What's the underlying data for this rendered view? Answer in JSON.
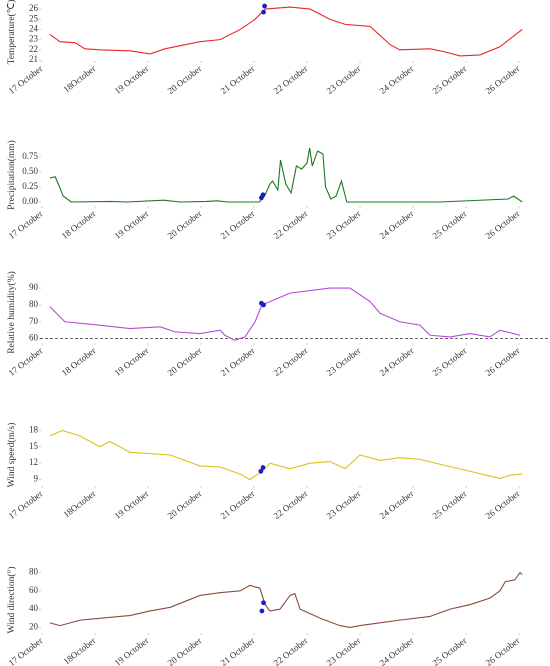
{
  "chart_data": [
    {
      "type": "line",
      "ylabel": "Temperature(℃)",
      "xlim": [
        17,
        26.2
      ],
      "ylim": [
        21,
        26.5
      ],
      "yticks": [
        21,
        22,
        23,
        24,
        25,
        26
      ],
      "xticks": [
        {
          "value": 17,
          "label": "17 October"
        },
        {
          "value": 18,
          "label": "18October"
        },
        {
          "value": 19,
          "label": "19 October"
        },
        {
          "value": 20,
          "label": "20 October"
        },
        {
          "value": 21,
          "label": "21 October"
        },
        {
          "value": 22,
          "label": "22 October"
        },
        {
          "value": 23,
          "label": "23 October"
        },
        {
          "value": 24,
          "label": "24 October"
        },
        {
          "value": 25,
          "label": "25 October"
        },
        {
          "value": 26,
          "label": "26 October"
        }
      ],
      "series": [
        {
          "color": "#e8262a",
          "x": [
            17.15,
            17.34,
            17.62,
            17.81,
            18.09,
            18.66,
            19.04,
            19.32,
            19.98,
            20.36,
            20.74,
            21.02,
            21.21,
            21.68,
            22.06,
            22.43,
            22.72,
            23.19,
            23.57,
            23.75,
            24.32,
            24.6,
            24.89,
            25.26,
            25.64,
            26.06
          ],
          "values": [
            23.5,
            22.8,
            22.7,
            22.1,
            22.0,
            21.9,
            21.6,
            22.1,
            22.8,
            23.0,
            24.0,
            25.0,
            26.0,
            26.2,
            26.0,
            25.0,
            24.5,
            24.3,
            22.5,
            22.0,
            22.1,
            21.8,
            21.4,
            21.5,
            22.3,
            24.0
          ]
        },
        {
          "color": "#1c1cc8",
          "marker": true,
          "x": [
            21.18,
            21.2
          ],
          "values": [
            25.7,
            26.3
          ]
        }
      ]
    },
    {
      "type": "line",
      "ylabel": "Precipitation(mm)",
      "xlim": [
        17,
        26.2
      ],
      "ylim": [
        -0.05,
        0.95
      ],
      "yticks": [
        {
          "value": 0,
          "label": "0.00"
        },
        {
          "value": 0.25,
          "label": "0.25"
        },
        {
          "value": 0.5,
          "label": "0.50"
        },
        {
          "value": 0.75,
          "label": "0.75"
        }
      ],
      "xticks": [
        {
          "value": 17,
          "label": "17 October"
        },
        {
          "value": 18,
          "label": "18 October"
        },
        {
          "value": 19,
          "label": "19 October"
        },
        {
          "value": 20,
          "label": "20 October"
        },
        {
          "value": 21,
          "label": "21 October"
        },
        {
          "value": 22,
          "label": "22 October"
        },
        {
          "value": 23,
          "label": "23 October"
        },
        {
          "value": 24,
          "label": "24 October"
        },
        {
          "value": 25,
          "label": "25 October"
        },
        {
          "value": 26,
          "label": "26 October"
        }
      ],
      "series": [
        {
          "color": "#1a7a1a",
          "x": [
            17.15,
            17.25,
            17.4,
            17.55,
            18.3,
            18.6,
            19.3,
            19.6,
            20.1,
            20.3,
            20.5,
            21.1,
            21.2,
            21.3,
            21.35,
            21.45,
            21.5,
            21.6,
            21.7,
            21.8,
            21.9,
            22.0,
            22.05,
            22.1,
            22.2,
            22.3,
            22.35,
            22.45,
            22.55,
            22.65,
            22.75,
            23.5,
            24.5,
            25.8,
            25.9,
            26.06
          ],
          "values": [
            0.4,
            0.42,
            0.1,
            0,
            0.01,
            0,
            0.03,
            0,
            0.01,
            0.02,
            0,
            0,
            0.1,
            0.3,
            0.35,
            0.2,
            0.7,
            0.3,
            0.15,
            0.6,
            0.55,
            0.65,
            0.9,
            0.6,
            0.85,
            0.8,
            0.25,
            0.05,
            0.1,
            0.35,
            0,
            0,
            0,
            0.05,
            0.1,
            0
          ]
        },
        {
          "color": "#1c1cc8",
          "marker": true,
          "x": [
            21.14,
            21.17
          ],
          "values": [
            0.07,
            0.12
          ]
        }
      ]
    },
    {
      "type": "line",
      "ylabel": "Relative humidity(%)",
      "xlim": [
        17,
        26.2
      ],
      "ylim": [
        58,
        93
      ],
      "yticks": [
        60,
        70,
        80,
        90
      ],
      "hline": 60,
      "xticks": [
        {
          "value": 17,
          "label": "17 October"
        },
        {
          "value": 18,
          "label": "18 October"
        },
        {
          "value": 19,
          "label": "19 October"
        },
        {
          "value": 20,
          "label": "20 October"
        },
        {
          "value": 21,
          "label": "21 October"
        },
        {
          "value": 22,
          "label": "22 October"
        },
        {
          "value": 23,
          "label": "23 October"
        },
        {
          "value": 24,
          "label": "24 October"
        },
        {
          "value": 25,
          "label": "25 October"
        },
        {
          "value": 26,
          "label": "26 October"
        }
      ],
      "series": [
        {
          "color": "#b54ad6",
          "x": [
            17.15,
            17.43,
            18.09,
            18.66,
            19.23,
            19.51,
            19.98,
            20.36,
            20.45,
            20.64,
            20.83,
            21.02,
            21.15,
            21.68,
            22.43,
            22.81,
            23.19,
            23.38,
            23.75,
            24.13,
            24.32,
            24.7,
            25.08,
            25.45,
            25.64,
            26.02
          ],
          "values": [
            79,
            70,
            68,
            66,
            67,
            64,
            63,
            65,
            62,
            59,
            61,
            70,
            80,
            87,
            90,
            90,
            82,
            75,
            70,
            68,
            62,
            61,
            63,
            61,
            65,
            62
          ]
        },
        {
          "color": "#1c1cc8",
          "marker": true,
          "x": [
            21.14,
            21.18
          ],
          "values": [
            81,
            80
          ]
        }
      ]
    },
    {
      "type": "line",
      "ylabel": "Wind speed(m/s)",
      "xlim": [
        17,
        26.2
      ],
      "ylim": [
        8,
        19
      ],
      "yticks": [
        9,
        12,
        15,
        18
      ],
      "xticks": [
        {
          "value": 17,
          "label": "17 October"
        },
        {
          "value": 18,
          "label": "18October"
        },
        {
          "value": 19,
          "label": "19 October"
        },
        {
          "value": 20,
          "label": "20 October"
        },
        {
          "value": 21,
          "label": "21 October"
        },
        {
          "value": 22,
          "label": "22 October"
        },
        {
          "value": 23,
          "label": "23 October"
        },
        {
          "value": 24,
          "label": "24 October"
        },
        {
          "value": 25,
          "label": "25 October"
        },
        {
          "value": 26,
          "label": "26 October"
        }
      ],
      "series": [
        {
          "color": "#d9c21a",
          "x": [
            17.15,
            17.38,
            17.72,
            18.09,
            18.28,
            18.66,
            19.42,
            19.98,
            20.36,
            20.74,
            20.92,
            21.15,
            21.3,
            21.68,
            22.06,
            22.43,
            22.72,
            23.0,
            23.38,
            23.75,
            24.13,
            24.51,
            25.08,
            25.64,
            25.83,
            26.06
          ],
          "values": [
            17,
            18,
            17,
            15,
            16,
            14,
            13.5,
            11.5,
            11.3,
            10,
            9,
            10.5,
            12,
            11,
            12,
            12.3,
            11,
            13.5,
            12.5,
            13,
            12.7,
            11.8,
            10.5,
            9.2,
            9.8,
            10
          ]
        },
        {
          "color": "#1c1cc8",
          "marker": true,
          "x": [
            21.13,
            21.17
          ],
          "values": [
            10.5,
            11.2
          ]
        }
      ]
    },
    {
      "type": "line",
      "ylabel": "Wind direction(°)",
      "xlim": [
        17,
        26.2
      ],
      "ylim": [
        15,
        85
      ],
      "yticks": [
        20,
        40,
        60,
        80
      ],
      "xticks": [
        {
          "value": 17,
          "label": "17 October"
        },
        {
          "value": 18,
          "label": "18October"
        },
        {
          "value": 19,
          "label": "19 October"
        },
        {
          "value": 20,
          "label": "20 October"
        },
        {
          "value": 21,
          "label": "21 October"
        },
        {
          "value": 22,
          "label": "22 October"
        },
        {
          "value": 23,
          "label": "23 October"
        },
        {
          "value": 24,
          "label": "24 October"
        },
        {
          "value": 25,
          "label": "25 October"
        },
        {
          "value": 26,
          "label": "26 October"
        }
      ],
      "series": [
        {
          "color": "#8b4a3a",
          "x": [
            17.15,
            17.34,
            17.72,
            18.09,
            18.66,
            19.04,
            19.42,
            19.98,
            20.36,
            20.74,
            20.92,
            21.11,
            21.21,
            21.3,
            21.49,
            21.68,
            21.77,
            21.87,
            22.25,
            22.62,
            22.81,
            23.0,
            23.38,
            23.75,
            24.32,
            24.7,
            25.08,
            25.45,
            25.64,
            25.74,
            25.92,
            26.02,
            26.06
          ],
          "values": [
            25,
            22,
            28,
            30,
            33,
            38,
            42,
            55,
            58,
            60,
            66,
            63,
            45,
            38,
            40,
            55,
            57,
            40,
            30,
            22,
            20,
            22,
            25,
            28,
            32,
            40,
            45,
            52,
            60,
            70,
            72,
            80,
            78
          ]
        },
        {
          "color": "#1c1cc8",
          "marker": true,
          "x": [
            21.15,
            21.18
          ],
          "values": [
            38,
            47
          ]
        }
      ]
    }
  ]
}
